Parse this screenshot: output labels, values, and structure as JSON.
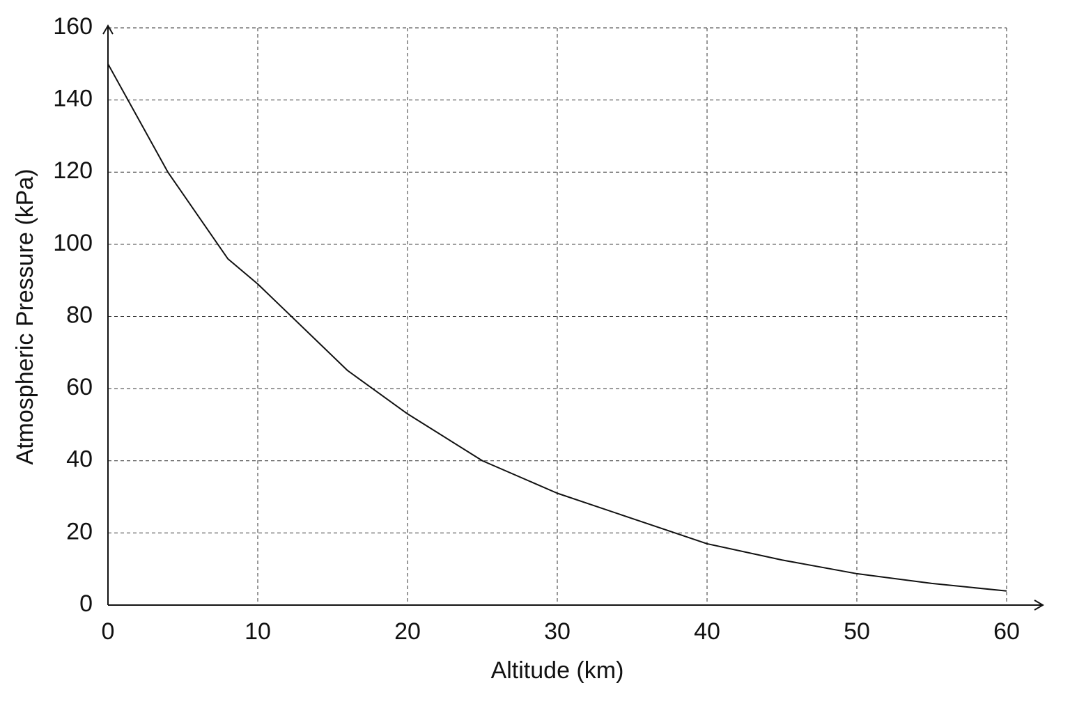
{
  "chart_data": {
    "type": "line",
    "x_label": "Altitude (km)",
    "y_label": "Atmospheric Pressure (kPa)",
    "x": [
      0,
      2,
      4,
      6,
      8,
      10,
      12,
      14,
      16,
      18,
      20,
      25,
      30,
      35,
      40,
      45,
      50,
      55,
      60
    ],
    "series": [
      {
        "color": "#111111",
        "values": [
          150,
          135,
          120,
          108,
          96,
          89,
          81,
          73,
          65,
          59,
          53,
          40,
          31,
          24,
          17,
          12.5,
          8.7,
          6,
          3.9
        ]
      }
    ],
    "xlim": [
      0,
      60
    ],
    "xticks": [
      0,
      10,
      20,
      30,
      40,
      50,
      60
    ],
    "ylim": [
      0,
      160
    ],
    "yticks": [
      0,
      20,
      40,
      60,
      80,
      100,
      120,
      140,
      160
    ],
    "grid": true
  }
}
